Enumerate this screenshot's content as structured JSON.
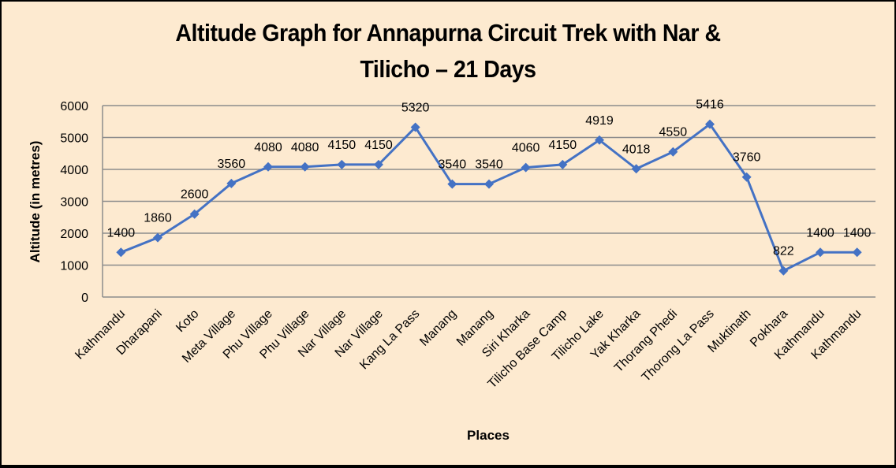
{
  "chart_data": {
    "type": "line",
    "title": "Altitude Graph for Annapurna Circuit Trek with Nar & Tilicho – 21 Days",
    "title_lines": [
      "Altitude Graph for Annapurna Circuit Trek with Nar &",
      "Tilicho – 21 Days"
    ],
    "xlabel": "Places",
    "ylabel": "Altitude (in metres)",
    "ylim": [
      0,
      6000
    ],
    "yticks": [
      0,
      1000,
      2000,
      3000,
      4000,
      5000,
      6000
    ],
    "grid": true,
    "legend": null,
    "categories": [
      "Kathmandu",
      "Dharapani",
      "Koto",
      "Meta Village",
      "Phu Village",
      "Phu Village",
      "Nar Village",
      "Nar Village",
      "Kang La Pass",
      "Manang",
      "Manang",
      "Siri Kharka",
      "Tilicho Base Camp",
      "Tilicho Lake",
      "Yak Kharka",
      "Thorang Phedi",
      "Thorong La Pass",
      "Muktinath",
      "Pokhara",
      "Kathmandu",
      "Kathmandu"
    ],
    "series": [
      {
        "name": "Altitude",
        "color": "#4472C4",
        "values": [
          1400,
          1860,
          2600,
          3560,
          4080,
          4080,
          4150,
          4150,
          5320,
          3540,
          3540,
          4060,
          4150,
          4919,
          4018,
          4550,
          5416,
          3760,
          822,
          1400,
          1400
        ]
      }
    ]
  },
  "colors": {
    "background": "#FDEAD0",
    "gridline": "#8C8C8C",
    "line": "#4472C4",
    "frame": "#000000"
  }
}
